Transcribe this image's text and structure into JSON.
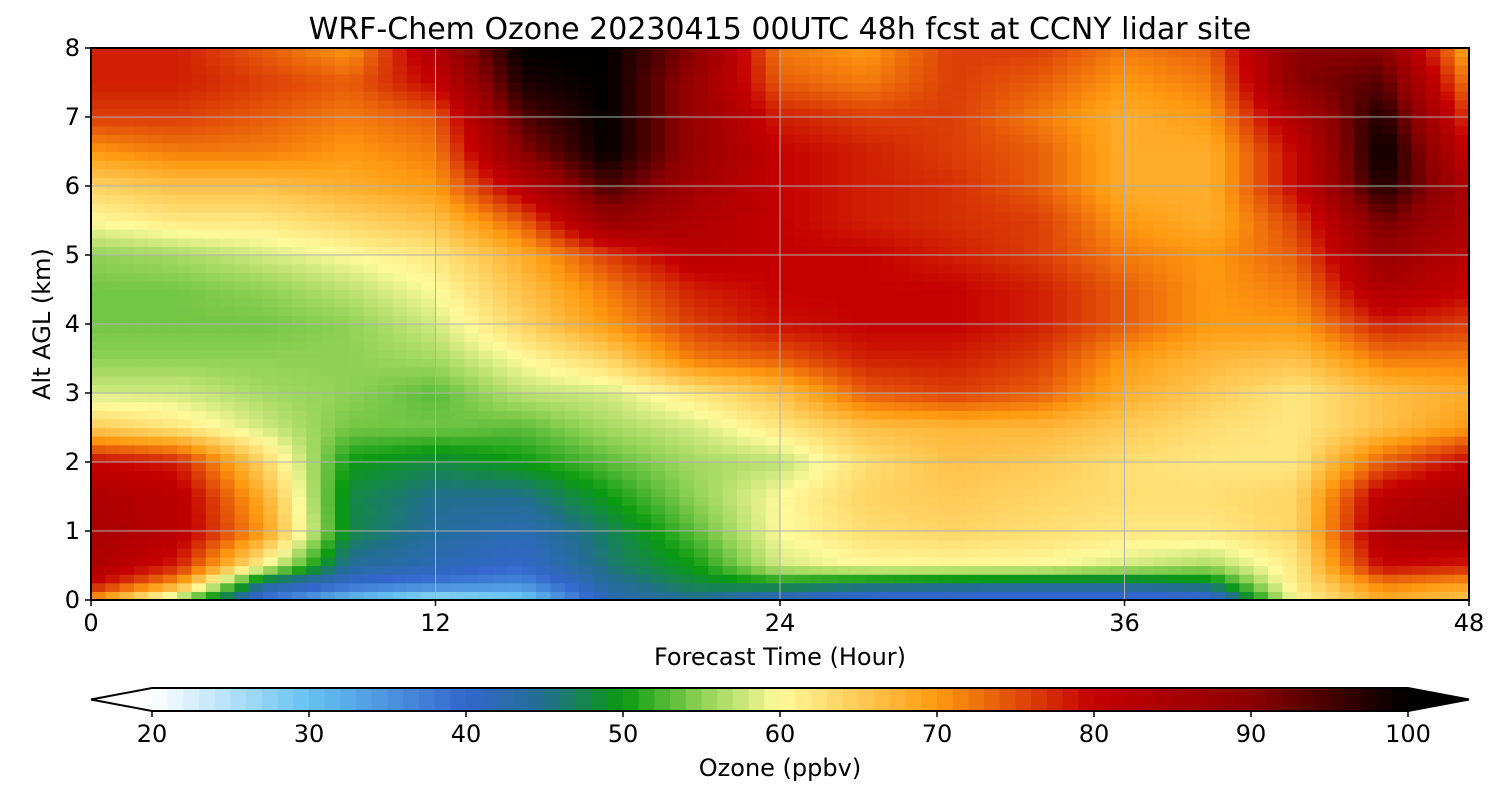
{
  "chart_data": {
    "type": "heatmap",
    "title": "WRF-Chem Ozone  20230415 00UTC 48h fcst at CCNY lidar site",
    "xlabel": "Forecast Time (Hour)",
    "ylabel": "Alt AGL (km)",
    "xlim": [
      0,
      48
    ],
    "ylim": [
      0,
      8
    ],
    "xticks": [
      0,
      12,
      24,
      36,
      48
    ],
    "yticks": [
      0,
      1,
      2,
      3,
      4,
      5,
      6,
      7,
      8
    ],
    "grid": true,
    "x": [
      0,
      3,
      6,
      9,
      12,
      15,
      18,
      21,
      24,
      27,
      30,
      33,
      36,
      39,
      42,
      45,
      48
    ],
    "y": [
      0,
      0.25,
      0.5,
      1,
      1.5,
      2,
      2.5,
      3,
      3.5,
      4,
      4.5,
      5,
      5.5,
      6,
      6.5,
      7,
      7.5,
      8
    ],
    "z": [
      [
        70,
        55,
        38,
        30,
        25,
        28,
        42,
        45,
        40,
        38,
        38,
        38,
        38,
        38,
        60,
        68,
        65
      ],
      [
        80,
        70,
        45,
        40,
        38,
        36,
        44,
        48,
        50,
        48,
        47,
        46,
        46,
        48,
        62,
        72,
        70
      ],
      [
        84,
        78,
        60,
        44,
        42,
        40,
        46,
        50,
        58,
        60,
        60,
        60,
        58,
        56,
        62,
        80,
        78
      ],
      [
        85,
        82,
        70,
        48,
        44,
        42,
        47,
        53,
        60,
        63,
        64,
        63,
        62,
        62,
        64,
        84,
        86
      ],
      [
        84,
        82,
        68,
        48,
        45,
        45,
        50,
        55,
        60,
        64,
        65,
        64,
        63,
        63,
        64,
        82,
        85
      ],
      [
        80,
        78,
        64,
        50,
        48,
        50,
        53,
        56,
        57,
        63,
        66,
        65,
        63,
        62,
        62,
        74,
        80
      ],
      [
        65,
        62,
        58,
        54,
        54,
        53,
        56,
        58,
        62,
        66,
        67,
        67,
        65,
        63,
        62,
        66,
        70
      ],
      [
        58,
        58,
        56,
        55,
        53,
        57,
        58,
        62,
        66,
        74,
        76,
        74,
        68,
        65,
        62,
        66,
        68
      ],
      [
        55,
        55,
        55,
        55,
        56,
        60,
        64,
        72,
        74,
        78,
        78,
        76,
        70,
        67,
        66,
        72,
        72
      ],
      [
        54,
        54,
        54,
        55,
        58,
        64,
        70,
        76,
        79,
        80,
        80,
        78,
        74,
        70,
        70,
        78,
        76
      ],
      [
        54,
        54,
        55,
        57,
        60,
        66,
        72,
        78,
        80,
        80,
        80,
        78,
        74,
        70,
        72,
        84,
        80
      ],
      [
        55,
        56,
        58,
        60,
        62,
        68,
        76,
        82,
        80,
        80,
        78,
        76,
        72,
        70,
        74,
        88,
        82
      ],
      [
        60,
        62,
        62,
        64,
        66,
        74,
        88,
        84,
        80,
        78,
        77,
        76,
        70,
        68,
        76,
        92,
        84
      ],
      [
        64,
        66,
        66,
        68,
        70,
        82,
        95,
        86,
        80,
        78,
        77,
        74,
        68,
        68,
        80,
        98,
        84
      ],
      [
        70,
        72,
        72,
        70,
        72,
        90,
        100,
        88,
        80,
        78,
        76,
        74,
        68,
        68,
        80,
        100,
        80
      ],
      [
        76,
        76,
        74,
        72,
        74,
        94,
        100,
        88,
        78,
        76,
        76,
        72,
        68,
        70,
        84,
        98,
        76
      ],
      [
        78,
        78,
        76,
        74,
        80,
        98,
        100,
        88,
        74,
        72,
        76,
        74,
        70,
        72,
        90,
        94,
        72
      ],
      [
        78,
        78,
        74,
        70,
        84,
        100,
        100,
        90,
        72,
        70,
        76,
        76,
        72,
        74,
        90,
        90,
        68
      ]
    ],
    "colorbar": {
      "label": "Ozone  (ppbv)",
      "min": 20,
      "max": 100,
      "ticks": [
        20,
        30,
        40,
        50,
        60,
        70,
        80,
        90,
        100
      ],
      "extend": "both",
      "stops": [
        {
          "v": 20,
          "c": "#ffffff"
        },
        {
          "v": 30,
          "c": "#66c2f2"
        },
        {
          "v": 40,
          "c": "#3366cc"
        },
        {
          "v": 45,
          "c": "#226f90"
        },
        {
          "v": 50,
          "c": "#0a9a10"
        },
        {
          "v": 55,
          "c": "#8fd155"
        },
        {
          "v": 60,
          "c": "#fffa9c"
        },
        {
          "v": 70,
          "c": "#ff9a10"
        },
        {
          "v": 80,
          "c": "#c40000"
        },
        {
          "v": 90,
          "c": "#8c0000"
        },
        {
          "v": 100,
          "c": "#000000"
        }
      ]
    }
  }
}
